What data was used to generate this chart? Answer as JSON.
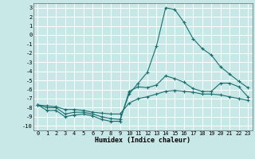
{
  "xlabel": "Humidex (Indice chaleur)",
  "xlim": [
    -0.5,
    23.5
  ],
  "ylim": [
    -10.5,
    3.5
  ],
  "bg_color": "#c8e8e8",
  "grid_color": "#ffffff",
  "line_color": "#1a6e6e",
  "line1_x": [
    0,
    1,
    2,
    3,
    4,
    5,
    6,
    7,
    8,
    9,
    10,
    11,
    12,
    13,
    14,
    15,
    16,
    17,
    18,
    19,
    20,
    21,
    22,
    23
  ],
  "line1_y": [
    -7.7,
    -8.3,
    -8.3,
    -9.0,
    -8.8,
    -8.7,
    -8.9,
    -9.3,
    -9.5,
    -9.5,
    -6.2,
    -5.7,
    -5.8,
    -5.5,
    -4.5,
    -4.8,
    -5.2,
    -5.9,
    -6.2,
    -6.2,
    -5.3,
    -5.3,
    -5.7,
    -6.8
  ],
  "line2_x": [
    0,
    1,
    2,
    3,
    4,
    5,
    6,
    7,
    8,
    9,
    10,
    11,
    12,
    13,
    14,
    15,
    16,
    17,
    18,
    19,
    20,
    21,
    22,
    23
  ],
  "line2_y": [
    -7.7,
    -8.0,
    -8.0,
    -8.7,
    -8.5,
    -8.5,
    -8.7,
    -9.0,
    -9.2,
    -9.3,
    -6.5,
    -5.3,
    -4.1,
    -1.2,
    3.0,
    2.8,
    1.4,
    -0.4,
    -1.5,
    -2.2,
    -3.5,
    -4.3,
    -5.1,
    -5.8
  ],
  "line3_x": [
    0,
    1,
    2,
    3,
    4,
    5,
    6,
    7,
    8,
    9,
    10,
    11,
    12,
    13,
    14,
    15,
    16,
    17,
    18,
    19,
    20,
    21,
    22,
    23
  ],
  "line3_y": [
    -7.7,
    -7.8,
    -7.9,
    -8.2,
    -8.2,
    -8.3,
    -8.5,
    -8.6,
    -8.7,
    -8.7,
    -7.5,
    -7.0,
    -6.8,
    -6.5,
    -6.2,
    -6.1,
    -6.2,
    -6.3,
    -6.5,
    -6.5,
    -6.6,
    -6.8,
    -7.0,
    -7.2
  ],
  "yticks": [
    3,
    2,
    1,
    0,
    -1,
    -2,
    -3,
    -4,
    -5,
    -6,
    -7,
    -8,
    -9,
    -10
  ],
  "xticks": [
    0,
    1,
    2,
    3,
    4,
    5,
    6,
    7,
    8,
    9,
    10,
    11,
    12,
    13,
    14,
    15,
    16,
    17,
    18,
    19,
    20,
    21,
    22,
    23
  ]
}
